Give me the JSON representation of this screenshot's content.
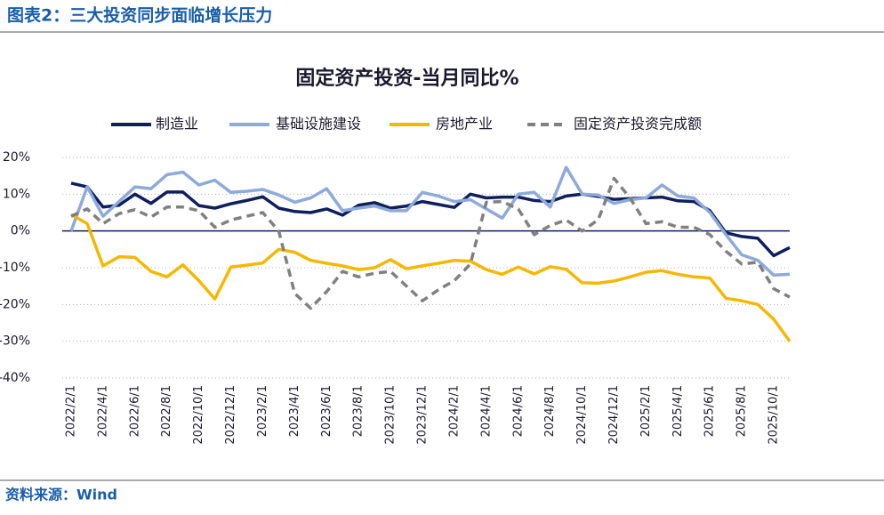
{
  "header": {
    "title": "图表2：三大投资同步面临增长压力"
  },
  "footer": {
    "source": "资料来源：Wind"
  },
  "chart_data": {
    "type": "line",
    "title": "固定资产投资-当月同比%",
    "legend": "top",
    "grid": true,
    "categories": [
      "2022/2/1",
      null,
      "2022/4/1",
      null,
      "2022/6/1",
      null,
      "2022/8/1",
      null,
      "2022/10/1",
      null,
      "2022/12/1",
      null,
      "2023/2/1",
      null,
      "2023/4/1",
      null,
      "2023/6/1",
      null,
      "2023/8/1",
      null,
      "2023/10/1",
      null,
      "2023/12/1",
      null,
      "2024/2/1",
      null,
      "2024/4/1",
      null,
      "2024/6/1",
      null,
      "2024/8/1",
      null,
      "2024/10/1",
      null,
      "2024/12/1",
      null,
      "2025/2/1",
      null,
      "2025/4/1",
      null,
      "2025/6/1",
      null,
      "2025/8/1",
      null,
      "2025/10/1",
      null
    ],
    "ylim": [
      -40,
      20
    ],
    "yticks": [
      {
        "value": -40,
        "label": "-40%"
      },
      {
        "value": -30,
        "label": "-30%"
      },
      {
        "value": -20,
        "label": "-20%"
      },
      {
        "value": -10,
        "label": "-10%"
      },
      {
        "value": 0,
        "label": "0%"
      },
      {
        "value": 10,
        "label": "10%"
      },
      {
        "value": 20,
        "label": "20%"
      }
    ],
    "series": [
      {
        "name": "制造业",
        "color": "#0f1f5c",
        "dashed": false,
        "values": [
          13,
          12,
          6.5,
          7,
          10,
          7.5,
          10.6,
          10.6,
          6.9,
          6.2,
          7.4,
          8.3,
          9.3,
          6.2,
          5.3,
          5,
          6,
          4.3,
          7,
          7.7,
          6.2,
          6.8,
          8,
          7.2,
          6.4,
          10,
          9,
          9.2,
          9.2,
          8.3,
          8,
          9.5,
          10,
          9.4,
          8.6,
          8.8,
          9,
          9.2,
          8.2,
          8,
          5.5,
          -0.5,
          -1.5,
          -2,
          -6.7,
          -4.5
        ]
      },
      {
        "name": "基础设施建设",
        "color": "#8eaadb",
        "dashed": false,
        "values": [
          0,
          12,
          4,
          8,
          12,
          11.5,
          15.3,
          16,
          12.5,
          13.8,
          10.5,
          10.8,
          11.3,
          9.8,
          7.8,
          9,
          11.5,
          5.5,
          6.2,
          6.8,
          5.5,
          5.5,
          10.5,
          9.5,
          8,
          8.5,
          6,
          3.5,
          10,
          10.5,
          6.5,
          17.3,
          10,
          9.8,
          7.5,
          8.5,
          9,
          12.5,
          9.5,
          9,
          5,
          -1,
          -6.5,
          -8,
          -12,
          -11.8
        ]
      },
      {
        "name": "房地产业",
        "color": "#f5b800",
        "dashed": false,
        "values": [
          4.5,
          2,
          -9.5,
          -7,
          -7.2,
          -11,
          -12.5,
          -9.2,
          -13.5,
          -18.5,
          -9.8,
          -9.3,
          -8.7,
          -5,
          -5.8,
          -8,
          -8.8,
          -9.5,
          -10.5,
          -10,
          -7.8,
          -10.3,
          -9.5,
          -8.8,
          -8,
          -8.2,
          -10.5,
          -11.8,
          -9.8,
          -11.7,
          -9.7,
          -10.4,
          -14.1,
          -14.2,
          -13.6,
          -12.5,
          -11.2,
          -10.8,
          -11.8,
          -12.5,
          -12.8,
          -18.3,
          -19,
          -20,
          -24,
          -30
        ]
      },
      {
        "name": "固定资产投资完成额",
        "color": "#808080",
        "dashed": true,
        "values": [
          4,
          6,
          2,
          4.7,
          5.8,
          3.8,
          6.5,
          6.5,
          5.5,
          1,
          3,
          4,
          5,
          0,
          -17,
          -21,
          -16.5,
          -11,
          -12.5,
          -11.5,
          -11,
          -15,
          -19,
          -16,
          -13.5,
          -9,
          7.8,
          8,
          6,
          -1,
          1.5,
          3,
          0,
          3,
          14.3,
          9,
          2,
          2.5,
          1,
          1,
          -1,
          -5.5,
          -9,
          -8.5,
          -15.7,
          -18
        ]
      }
    ]
  }
}
